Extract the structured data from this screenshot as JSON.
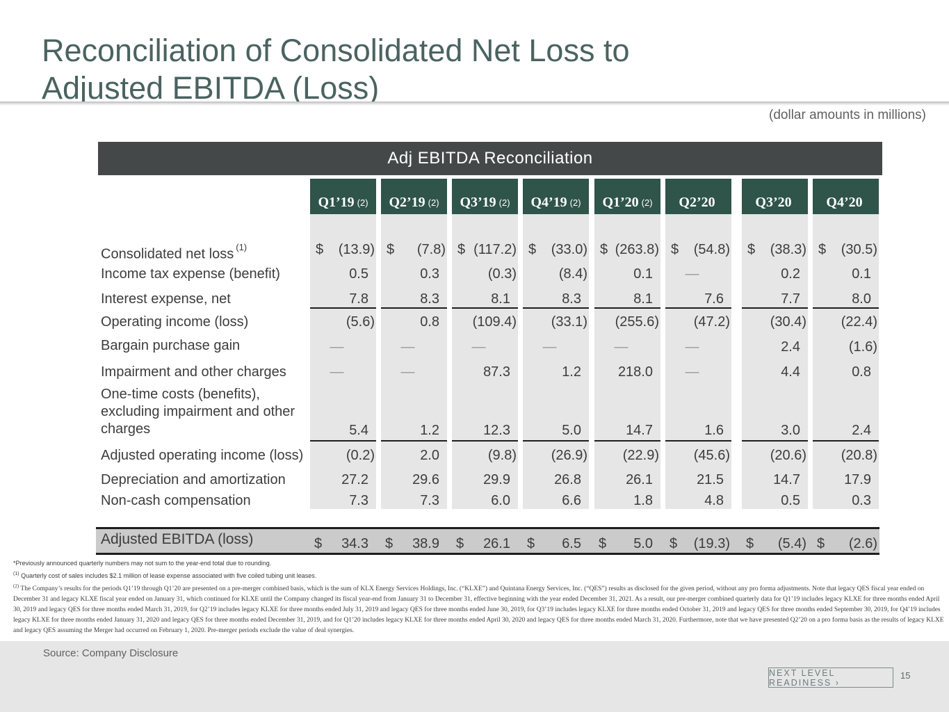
{
  "title": {
    "line1": "Reconciliation of Consolidated Net Loss to",
    "line2": "Adjusted EBITDA (Loss)"
  },
  "units_note": "(dollar amounts in millions)",
  "table": {
    "banner": "Adj EBITDA Reconciliation",
    "currency": "$",
    "quarters": [
      {
        "label": "Q1’19",
        "note": "(2)"
      },
      {
        "label": "Q2’19",
        "note": "(2)"
      },
      {
        "label": "Q3’19",
        "note": "(2)"
      },
      {
        "label": "Q4’19",
        "note": "(2)"
      },
      {
        "label": "Q1’20",
        "note": "(2)"
      },
      {
        "label": "Q2’20",
        "note": ""
      },
      {
        "label": "Q3’20",
        "note": ""
      },
      {
        "label": "Q4’20",
        "note": ""
      }
    ],
    "rows": [
      {
        "label": "Consolidated net loss",
        "note": "(1)",
        "values": [
          "(13.9)",
          "(7.8)",
          "(117.2)",
          "(33.0)",
          "(263.8)",
          "(54.8)",
          "(38.3)",
          "(30.5)"
        ]
      },
      {
        "label": "Income tax expense (benefit)",
        "values": [
          "0.5",
          "0.3",
          "(0.3)",
          "(8.4)",
          "0.1",
          "—",
          "0.2",
          "0.1"
        ]
      },
      {
        "label": "Interest expense, net",
        "values": [
          "7.8",
          "8.3",
          "8.1",
          "8.3",
          "8.1",
          "7.6",
          "7.7",
          "8.0"
        ]
      },
      {
        "label": "Operating income (loss)",
        "values": [
          "(5.6)",
          "0.8",
          "(109.4)",
          "(33.1)",
          "(255.6)",
          "(47.2)",
          "(30.4)",
          "(22.4)"
        ]
      },
      {
        "label": "Bargain purchase gain",
        "values": [
          "—",
          "—",
          "—",
          "—",
          "—",
          "—",
          "2.4",
          "(1.6)"
        ]
      },
      {
        "label": "Impairment and other charges",
        "values": [
          "—",
          "—",
          "87.3",
          "1.2",
          "218.0",
          "—",
          "4.4",
          "0.8"
        ]
      },
      {
        "label_lines": [
          "One-time costs (benefits),",
          "excluding impairment and other",
          "charges"
        ],
        "values": [
          "5.4",
          "1.2",
          "12.3",
          "5.0",
          "14.7",
          "1.6",
          "3.0",
          "2.4"
        ]
      },
      {
        "label": "Adjusted operating income (loss)",
        "values": [
          "(0.2)",
          "2.0",
          "(9.8)",
          "(26.9)",
          "(22.9)",
          "(45.6)",
          "(20.6)",
          "(20.8)"
        ]
      },
      {
        "label": "Depreciation and amortization",
        "values": [
          "27.2",
          "29.6",
          "29.9",
          "26.8",
          "26.1",
          "21.5",
          "14.7",
          "17.9"
        ]
      },
      {
        "label": "Non-cash compensation",
        "values": [
          "7.3",
          "7.3",
          "6.0",
          "6.6",
          "1.8",
          "4.8",
          "0.5",
          "0.3"
        ]
      }
    ],
    "total": {
      "label": "Adjusted EBITDA (loss)",
      "values": [
        "34.3",
        "38.9",
        "26.1",
        "6.5",
        "5.0",
        "(19.3)",
        "(5.4)",
        "(2.6)"
      ]
    }
  },
  "footnotes": {
    "star": "*Previously announced quarterly numbers may not sum to the year-end total due to rounding.",
    "note1_mark": "(1)",
    "note1": "Quarterly cost of sales includes $2.1 million of lease expense associated with five coiled tubing unit leases.",
    "note2_mark": "(2)",
    "note2": "The Company’s results for the periods Q1’19 through Q1’20 are presented on a pre-merger combined basis, which is the sum of KLX Energy Services Holdings, Inc. (“KLXE”) and Quintana Energy Services, Inc. (“QES”) results as disclosed for the given period, without any pro forma adjustments. Note that legacy QES fiscal year ended on December 31 and legacy KLXE fiscal year ended on January 31, which continued for KLXE until the Company changed its fiscal year-end from January 31 to December 31, effective beginning with the year ended December 31, 2021. As a result, our pre-merger combined quarterly data for Q1’19 includes legacy KLXE for three months ended April 30, 2019 and legacy QES for three months ended March 31, 2019, for Q2’19 includes legacy KLXE for three months ended July 31, 2019 and legacy QES for three months ended June 30, 2019, for Q3’19 includes legacy KLXE for three months ended October 31, 2019 and legacy QES for three months ended September 30, 2019, for Q4’19 includes legacy KLXE for three months ended January 31, 2020 and legacy QES for three months ended December 31, 2019, and for Q1’20 includes legacy KLXE for three months ended April 30, 2020 and legacy QES for three months ended March 31, 2020. Furthermore, note that we have presented Q2’20 on a pro forma basis as the results of legacy KLXE and legacy QES assuming the Merger had occurred on February 1, 2020. Pre-merger periods exclude the value of deal synergies."
  },
  "footer": {
    "source": "Source: Company Disclosure",
    "tagline": "NEXT LEVEL READINESS ›",
    "page_number": "15"
  },
  "colors": {
    "title": "#4a6360",
    "banner": "#454849",
    "header_cell": "#2f5449",
    "column_bg": "#e6e6e6",
    "total_band": "#cbcbcb"
  }
}
